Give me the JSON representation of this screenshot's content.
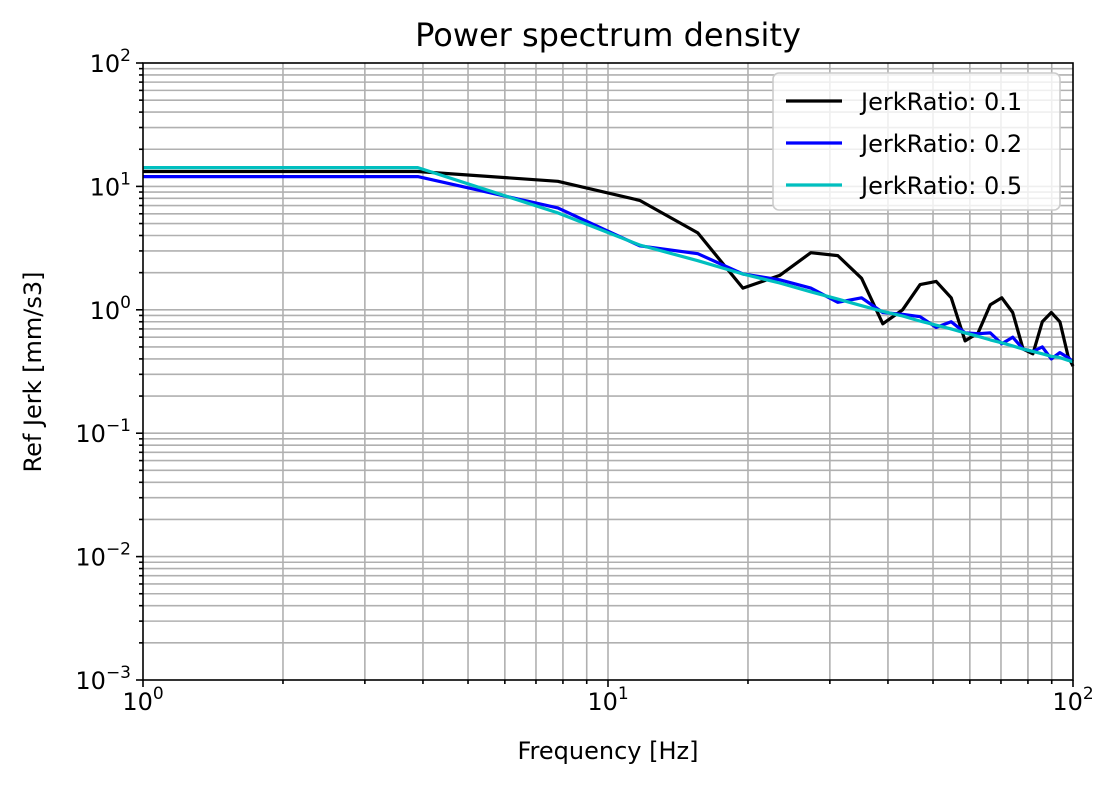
{
  "chart_data": {
    "type": "line",
    "title": "Power spectrum density",
    "xlabel": "Frequency [Hz]",
    "ylabel": "Ref Jerk [mm/s3]",
    "xscale": "log",
    "yscale": "log",
    "xlim": [
      1,
      100
    ],
    "ylim": [
      0.001,
      100
    ],
    "grid": "major and minor",
    "legend": "top-right",
    "x_ticks": [
      {
        "base": "10",
        "exp": "0"
      },
      {
        "base": "10",
        "exp": "1"
      },
      {
        "base": "10",
        "exp": "2"
      }
    ],
    "y_ticks": [
      {
        "base": "10",
        "exp": "−3"
      },
      {
        "base": "10",
        "exp": "−2"
      },
      {
        "base": "10",
        "exp": "−1"
      },
      {
        "base": "10",
        "exp": "0"
      },
      {
        "base": "10",
        "exp": "1"
      },
      {
        "base": "10",
        "exp": "2"
      }
    ],
    "series": [
      {
        "name": "JerkRatio: 0.1",
        "color": "#000000",
        "x": [
          1,
          3.9,
          7.8,
          11.7,
          15.6,
          19.5,
          23.4,
          27.3,
          31.2,
          35.1,
          39,
          43,
          46.9,
          50.8,
          54.7,
          58.6,
          62.5,
          66.4,
          70.3,
          74.2,
          78.1,
          82,
          85.9,
          89.8,
          93.7,
          97.6,
          100
        ],
        "y": [
          13.2,
          13.2,
          11,
          7.7,
          4.2,
          1.5,
          1.9,
          2.9,
          2.75,
          1.8,
          0.77,
          1.0,
          1.6,
          1.7,
          1.25,
          0.56,
          0.65,
          1.1,
          1.25,
          0.95,
          0.48,
          0.44,
          0.8,
          0.95,
          0.8,
          0.42,
          0.35
        ]
      },
      {
        "name": "JerkRatio: 0.2",
        "color": "#0000ff",
        "x": [
          1,
          3.9,
          7.8,
          11.7,
          15.6,
          19.5,
          23.4,
          27.3,
          31.2,
          35.1,
          39,
          43,
          46.9,
          50.8,
          54.7,
          58.6,
          62.5,
          66.4,
          70.3,
          74.2,
          78.1,
          82,
          85.9,
          89.8,
          93.7,
          97.6,
          100
        ],
        "y": [
          12,
          12,
          6.7,
          3.3,
          2.85,
          1.95,
          1.75,
          1.5,
          1.15,
          1.25,
          0.95,
          0.92,
          0.88,
          0.72,
          0.8,
          0.65,
          0.64,
          0.65,
          0.53,
          0.6,
          0.48,
          0.46,
          0.5,
          0.4,
          0.45,
          0.41,
          0.38
        ]
      },
      {
        "name": "JerkRatio: 0.5",
        "color": "#00bfbf",
        "x": [
          1,
          3.9,
          7.8,
          11.7,
          15.6,
          19.5,
          23.4,
          27.3,
          31.2,
          35.1,
          39,
          43,
          46.9,
          50.8,
          54.7,
          58.6,
          62.5,
          66.4,
          70.3,
          74.2,
          78.1,
          82,
          85.9,
          89.8,
          93.7,
          97.6,
          100
        ],
        "y": [
          14.2,
          14.2,
          6.1,
          3.35,
          2.5,
          1.95,
          1.65,
          1.4,
          1.22,
          1.08,
          0.97,
          0.89,
          0.81,
          0.75,
          0.7,
          0.65,
          0.61,
          0.57,
          0.54,
          0.51,
          0.48,
          0.46,
          0.44,
          0.42,
          0.41,
          0.39,
          0.38
        ]
      }
    ]
  }
}
